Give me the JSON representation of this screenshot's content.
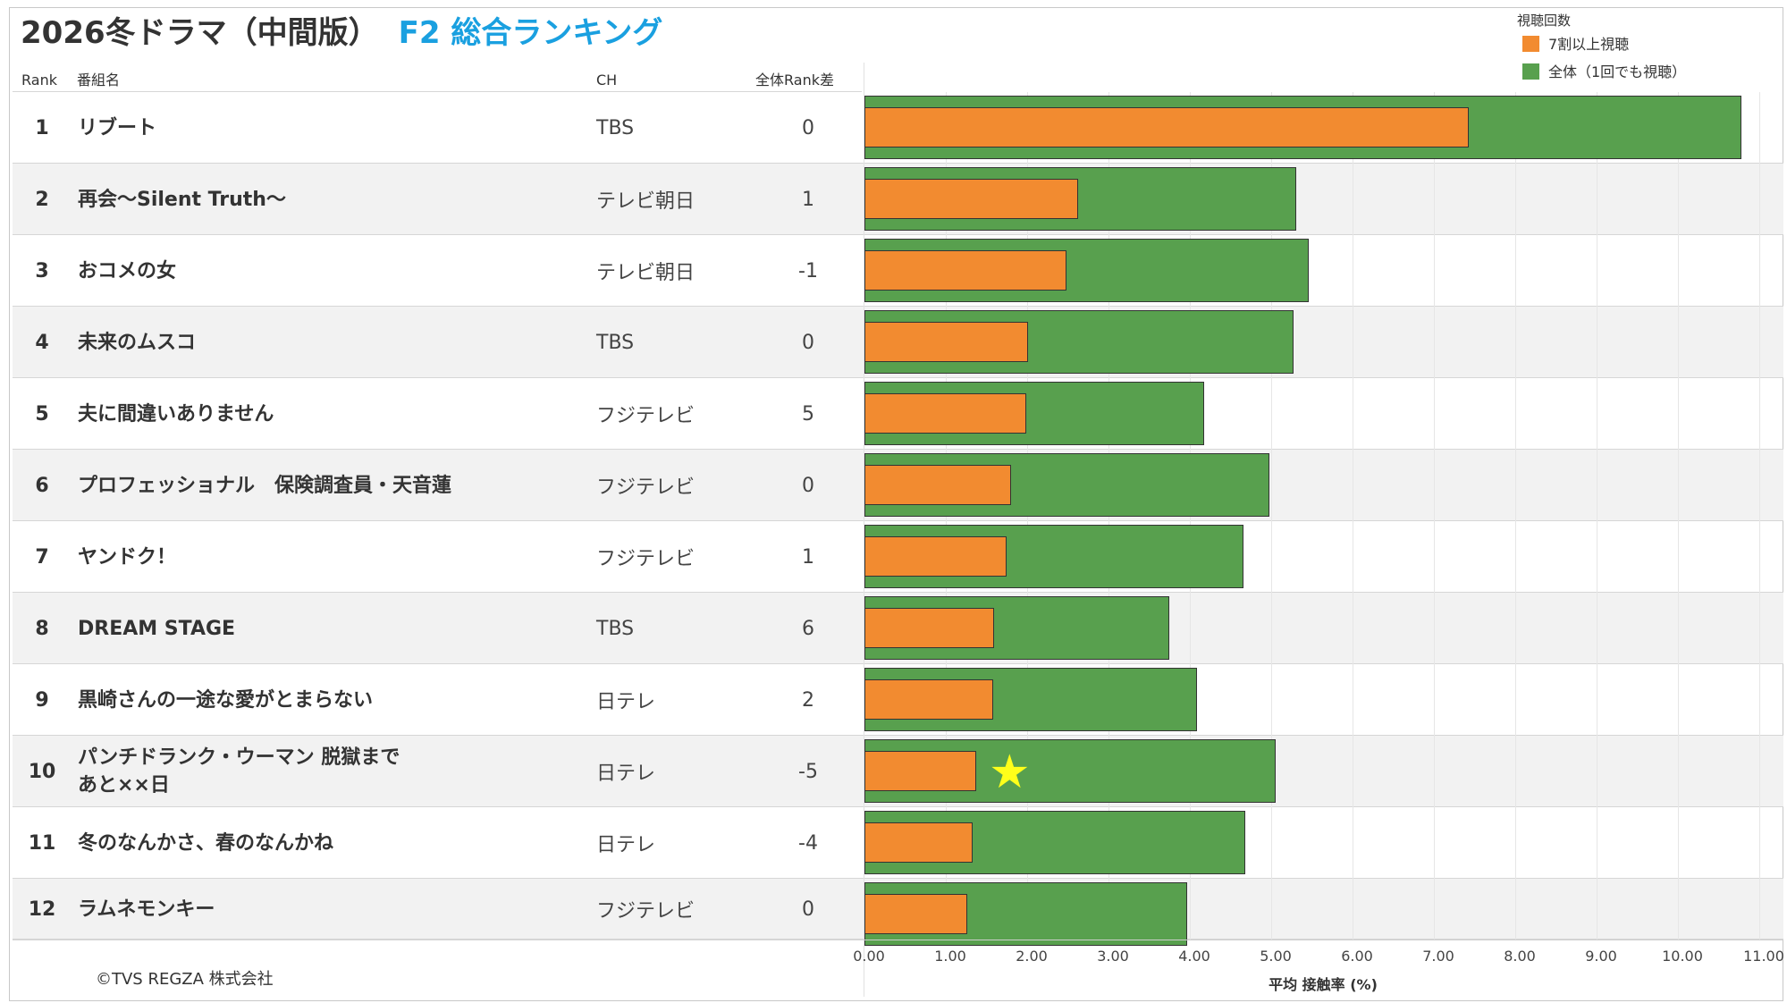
{
  "header": {
    "title": "2026冬ドラマ（中間版）",
    "subtitle": "F2 総合ランキング"
  },
  "columns": {
    "rank": "Rank",
    "program": "番組名",
    "channel": "CH",
    "rank_diff": "全体Rank差"
  },
  "legend": {
    "title": "視聴回数",
    "items": [
      {
        "label": "7割以上視聴",
        "color": "#f28b30"
      },
      {
        "label": "全体（1回でも視聴）",
        "color": "#58a04e"
      }
    ]
  },
  "rows": [
    {
      "rank": "1",
      "name": "リブート",
      "channel": "TBS",
      "diff": "0"
    },
    {
      "rank": "2",
      "name": "再会～Silent Truth～",
      "channel": "テレビ朝日",
      "diff": "1"
    },
    {
      "rank": "3",
      "name": "おコメの女",
      "channel": "テレビ朝日",
      "diff": "-1"
    },
    {
      "rank": "4",
      "name": "未来のムスコ",
      "channel": "TBS",
      "diff": "0"
    },
    {
      "rank": "5",
      "name": "夫に間違いありません",
      "channel": "フジテレビ",
      "diff": "5"
    },
    {
      "rank": "6",
      "name": "プロフェッショナル　保険調査員・天音蓮",
      "channel": "フジテレビ",
      "diff": "0"
    },
    {
      "rank": "7",
      "name": "ヤンドク！",
      "channel": "フジテレビ",
      "diff": "1"
    },
    {
      "rank": "8",
      "name": "DREAM STAGE",
      "channel": "TBS",
      "diff": "6"
    },
    {
      "rank": "9",
      "name": "黒崎さんの一途な愛がとまらない",
      "channel": "日テレ",
      "diff": "2"
    },
    {
      "rank": "10",
      "name": "パンチドランク・ウーマン 脱獄まであと××日",
      "channel": "日テレ",
      "diff": "-5"
    },
    {
      "rank": "11",
      "name": "冬のなんかさ、春のなんかね",
      "channel": "日テレ",
      "diff": "-4"
    },
    {
      "rank": "12",
      "name": "ラムネモンキー",
      "channel": "フジテレビ",
      "diff": "0"
    }
  ],
  "chart_data": {
    "type": "bar",
    "orientation": "horizontal",
    "xlabel": "平均 接触率 (%)",
    "xlim": [
      0,
      11
    ],
    "ticks": [
      "0.00",
      "1.00",
      "2.00",
      "3.00",
      "4.00",
      "5.00",
      "6.00",
      "7.00",
      "8.00",
      "9.00",
      "10.00",
      "11.00"
    ],
    "categories": [
      "リブート",
      "再会～Silent Truth～",
      "おコメの女",
      "未来のムスコ",
      "夫に間違いありません",
      "プロフェッショナル　保険調査員・天音蓮",
      "ヤンドク！",
      "DREAM STAGE",
      "黒崎さんの一途な愛がとまらない",
      "パンチドランク・ウーマン 脱獄まであと××日",
      "冬のなんかさ、春のなんかね",
      "ラムネモンキー"
    ],
    "series": [
      {
        "name": "全体（1回でも視聴）",
        "values": [
          10.78,
          5.31,
          5.46,
          5.27,
          4.18,
          4.98,
          4.66,
          3.75,
          4.09,
          5.05,
          4.68,
          3.97
        ]
      },
      {
        "name": "7割以上視聴",
        "values": [
          7.43,
          2.63,
          2.48,
          2.01,
          1.99,
          1.8,
          1.75,
          1.59,
          1.58,
          1.37,
          1.33,
          1.26
        ]
      }
    ],
    "highlight_row": 10,
    "highlight_symbol": "★"
  },
  "footer": {
    "copyright": "©TVS REGZA 株式会社"
  }
}
